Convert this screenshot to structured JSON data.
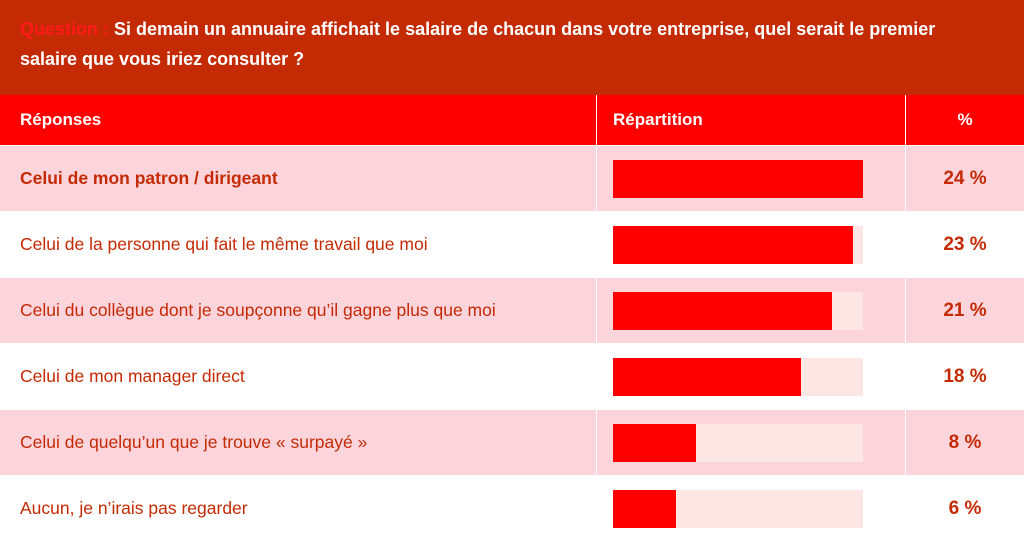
{
  "question": {
    "label": "Question :",
    "text": " Si demain un annuaire affichait le salaire de chacun dans votre entreprise, quel serait le premier salaire que vous iriez consulter ?"
  },
  "table_header": {
    "responses": "Réponses",
    "distribution": "Répartition",
    "percent": "%"
  },
  "colors": {
    "question_bg": "#c42a04",
    "header_bg": "#ff0000",
    "bar": "#ff0000",
    "bar_track": "#fde7e4",
    "row_shade": "#fbd4dc",
    "text": "#c42a04"
  },
  "chart_data": {
    "type": "bar",
    "orientation": "horizontal",
    "categories": [
      "Celui de mon patron / dirigeant",
      "Celui de la personne qui fait le même travail que moi",
      "Celui du collègue dont je soupçonne qu’il gagne plus que moi",
      "Celui de mon manager direct",
      "Celui de quelqu’un que je trouve « surpayé »",
      "Aucun, je n’irais pas regarder"
    ],
    "values": [
      24,
      23,
      21,
      18,
      8,
      6
    ],
    "value_labels": [
      "24 %",
      "23 %",
      "21 %",
      "18 %",
      "8 %",
      "6 %"
    ],
    "xlim": [
      0,
      24
    ],
    "grid": false,
    "legend": "none"
  }
}
